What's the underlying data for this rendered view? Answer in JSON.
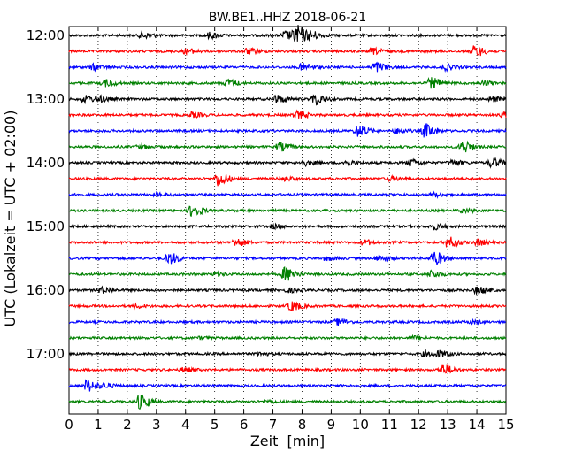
{
  "chart_data": {
    "type": "line",
    "title": "BW.BE1..HHZ 2018-06-21",
    "xlabel": "Zeit  [min]",
    "ylabel": "UTC (Lokalzeit = UTC + 02:00)",
    "xlim": [
      0,
      15
    ],
    "x_ticks": [
      "0",
      "1",
      "2",
      "3",
      "4",
      "5",
      "6",
      "7",
      "8",
      "9",
      "10",
      "11",
      "12",
      "13",
      "14",
      "15"
    ],
    "y_ticks": [
      {
        "label": "12:00",
        "row": 0
      },
      {
        "label": "13:00",
        "row": 4
      },
      {
        "label": "14:00",
        "row": 8
      },
      {
        "label": "15:00",
        "row": 12
      },
      {
        "label": "16:00",
        "row": 16
      },
      {
        "label": "17:00",
        "row": 20
      }
    ],
    "row_interval_min": 15,
    "color_cycle": [
      "#000000",
      "#ff0000",
      "#0000ff",
      "#008000"
    ],
    "grid": "vertical-dotted",
    "series": [
      {
        "row": 0,
        "events": [
          [
            7.8,
            1.0
          ],
          [
            7.4,
            0.45
          ],
          [
            8.3,
            0.35
          ],
          [
            2.5,
            0.3
          ],
          [
            4.8,
            0.3
          ]
        ]
      },
      {
        "row": 1,
        "events": [
          [
            13.9,
            0.55
          ],
          [
            6.1,
            0.3
          ],
          [
            10.4,
            0.3
          ],
          [
            4.0,
            0.25
          ]
        ]
      },
      {
        "row": 2,
        "events": [
          [
            10.5,
            0.55
          ],
          [
            8.0,
            0.4
          ],
          [
            12.9,
            0.3
          ],
          [
            0.8,
            0.3
          ]
        ]
      },
      {
        "row": 3,
        "events": [
          [
            12.4,
            0.55
          ],
          [
            5.4,
            0.4
          ],
          [
            1.2,
            0.35
          ],
          [
            14.2,
            0.2
          ]
        ]
      },
      {
        "row": 4,
        "events": [
          [
            7.1,
            0.45
          ],
          [
            8.4,
            0.6
          ],
          [
            0.5,
            0.35
          ],
          [
            1.0,
            0.3
          ],
          [
            14.5,
            0.25
          ]
        ]
      },
      {
        "row": 5,
        "events": [
          [
            7.8,
            0.4
          ],
          [
            4.2,
            0.25
          ],
          [
            14.9,
            0.25
          ]
        ]
      },
      {
        "row": 6,
        "events": [
          [
            12.2,
            0.75
          ],
          [
            9.9,
            0.6
          ],
          [
            11.2,
            0.25
          ]
        ]
      },
      {
        "row": 7,
        "events": [
          [
            13.5,
            0.65
          ],
          [
            7.2,
            0.45
          ],
          [
            2.4,
            0.2
          ]
        ]
      },
      {
        "row": 8,
        "events": [
          [
            14.5,
            0.45
          ],
          [
            11.7,
            0.35
          ],
          [
            8.0,
            0.3
          ],
          [
            13.1,
            0.3
          ],
          [
            9.5,
            0.25
          ]
        ]
      },
      {
        "row": 9,
        "events": [
          [
            5.1,
            0.75
          ],
          [
            7.3,
            0.25
          ],
          [
            11.0,
            0.2
          ]
        ]
      },
      {
        "row": 10,
        "events": [
          [
            12.5,
            0.2
          ],
          [
            3.0,
            0.15
          ]
        ]
      },
      {
        "row": 11,
        "events": [
          [
            4.2,
            0.6
          ],
          [
            13.5,
            0.2
          ]
        ]
      },
      {
        "row": 12,
        "events": [
          [
            12.5,
            0.3
          ],
          [
            7.0,
            0.2
          ]
        ]
      },
      {
        "row": 13,
        "events": [
          [
            13.0,
            0.55
          ],
          [
            5.7,
            0.4
          ],
          [
            10.1,
            0.25
          ],
          [
            14.0,
            0.3
          ]
        ]
      },
      {
        "row": 14,
        "events": [
          [
            12.5,
            0.7
          ],
          [
            3.4,
            0.6
          ],
          [
            10.6,
            0.35
          ],
          [
            8.8,
            0.2
          ]
        ]
      },
      {
        "row": 15,
        "events": [
          [
            7.4,
            0.75
          ],
          [
            12.4,
            0.35
          ],
          [
            5.0,
            0.15
          ]
        ]
      },
      {
        "row": 16,
        "events": [
          [
            14.0,
            0.4
          ],
          [
            1.1,
            0.3
          ],
          [
            7.5,
            0.2
          ]
        ]
      },
      {
        "row": 17,
        "events": [
          [
            7.6,
            0.5
          ],
          [
            2.3,
            0.15
          ]
        ]
      },
      {
        "row": 18,
        "events": [
          [
            9.2,
            0.3
          ],
          [
            13.8,
            0.15
          ]
        ]
      },
      {
        "row": 19,
        "events": [
          [
            11.8,
            0.15
          ],
          [
            4.5,
            0.1
          ]
        ]
      },
      {
        "row": 20,
        "events": [
          [
            12.7,
            0.3
          ],
          [
            12.2,
            0.25
          ],
          [
            6.5,
            0.15
          ]
        ]
      },
      {
        "row": 21,
        "events": [
          [
            12.8,
            0.55
          ],
          [
            3.9,
            0.2
          ]
        ]
      },
      {
        "row": 22,
        "events": [
          [
            0.6,
            0.65
          ],
          [
            1.2,
            0.2
          ]
        ]
      },
      {
        "row": 23,
        "events": [
          [
            2.4,
            0.75
          ],
          [
            6.8,
            0.15
          ]
        ]
      }
    ]
  }
}
